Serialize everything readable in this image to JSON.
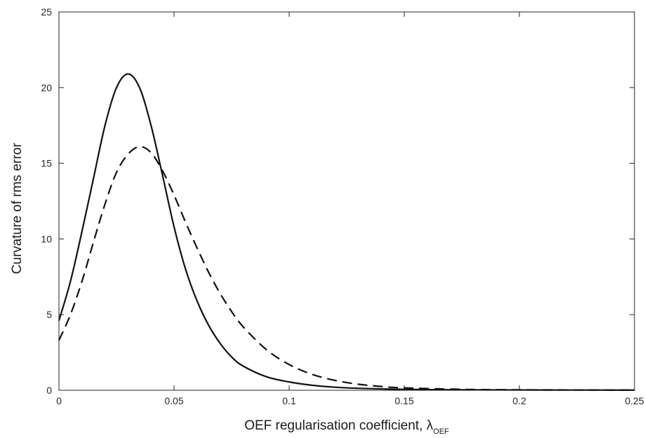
{
  "chart_data": {
    "type": "line",
    "title": "",
    "xlabel": "OEF regularisation coefficient, λ",
    "xlabel_subscript": "OEF",
    "ylabel": "Curvature of rms error",
    "xlim": [
      0,
      0.25
    ],
    "ylim": [
      0,
      25
    ],
    "xticks": [
      0,
      0.05,
      0.1,
      0.15,
      0.2,
      0.25
    ],
    "xtick_labels": [
      "0",
      "0.05",
      "0.1",
      "0.15",
      "0.2",
      "0.25"
    ],
    "yticks": [
      0,
      5,
      10,
      15,
      20,
      25
    ],
    "ytick_labels": [
      "0",
      "5",
      "10",
      "15",
      "20",
      "25"
    ],
    "grid": false,
    "legend": "none",
    "series": [
      {
        "style": "solid",
        "color": "#111111",
        "x": [
          0,
          0.005,
          0.01,
          0.015,
          0.02,
          0.025,
          0.03,
          0.035,
          0.04,
          0.045,
          0.05,
          0.055,
          0.06,
          0.065,
          0.07,
          0.075,
          0.08,
          0.09,
          0.1,
          0.11,
          0.12,
          0.13,
          0.14,
          0.15,
          0.175,
          0.2,
          0.25
        ],
        "values": [
          4.6,
          7.2,
          10.5,
          14.0,
          17.5,
          20.0,
          20.9,
          20.0,
          17.5,
          14.2,
          10.8,
          8.0,
          5.9,
          4.3,
          3.1,
          2.2,
          1.6,
          0.9,
          0.55,
          0.33,
          0.2,
          0.13,
          0.09,
          0.06,
          0.03,
          0.02,
          0.01
        ]
      },
      {
        "style": "dashed",
        "color": "#111111",
        "x": [
          0,
          0.005,
          0.01,
          0.015,
          0.02,
          0.025,
          0.03,
          0.035,
          0.04,
          0.045,
          0.05,
          0.055,
          0.06,
          0.065,
          0.07,
          0.075,
          0.08,
          0.09,
          0.1,
          0.11,
          0.12,
          0.13,
          0.14,
          0.15,
          0.175,
          0.2,
          0.25
        ],
        "values": [
          3.3,
          5.0,
          7.2,
          9.8,
          12.3,
          14.4,
          15.6,
          16.1,
          15.7,
          14.5,
          12.9,
          11.1,
          9.4,
          7.8,
          6.4,
          5.2,
          4.2,
          2.7,
          1.7,
          1.05,
          0.65,
          0.4,
          0.25,
          0.16,
          0.06,
          0.03,
          0.01
        ]
      }
    ]
  }
}
